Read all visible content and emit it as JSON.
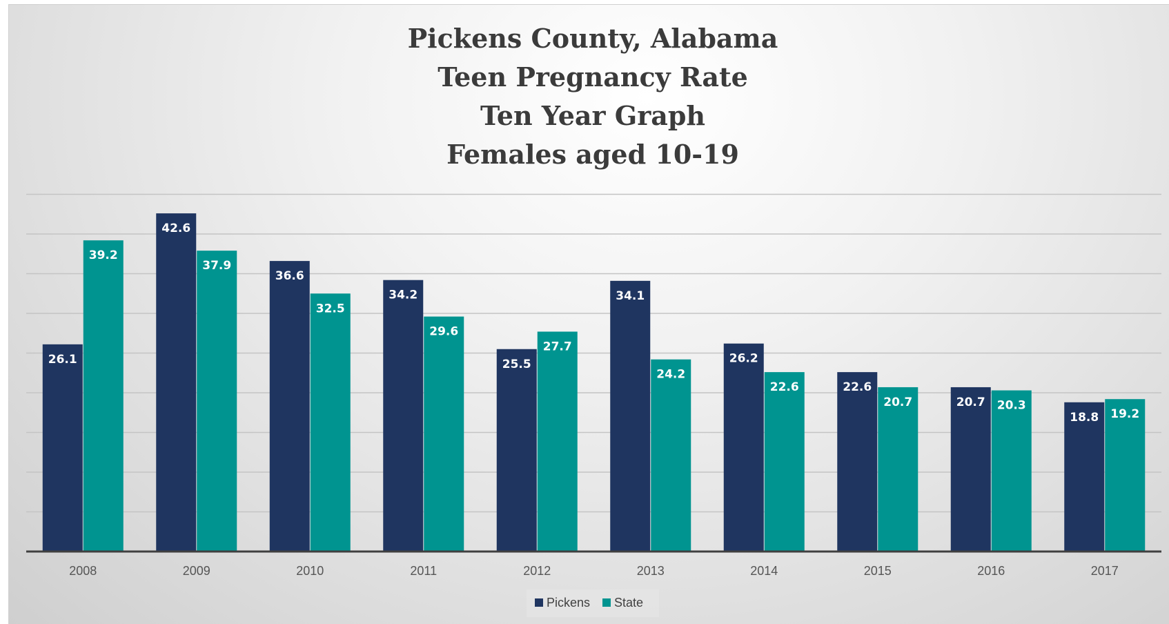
{
  "chart_data": {
    "type": "bar",
    "title_lines": [
      "Pickens County, Alabama",
      "Teen Pregnancy Rate",
      "Ten Year Graph",
      "Females aged 10-19"
    ],
    "categories": [
      "2008",
      "2009",
      "2010",
      "2011",
      "2012",
      "2013",
      "2014",
      "2015",
      "2016",
      "2017"
    ],
    "series": [
      {
        "name": "Pickens",
        "color": "#1f3560",
        "values": [
          26.1,
          42.6,
          36.6,
          34.2,
          25.5,
          34.1,
          26.2,
          22.6,
          20.7,
          18.8
        ]
      },
      {
        "name": "State",
        "color": "#009490",
        "values": [
          39.2,
          37.9,
          32.5,
          29.6,
          27.7,
          24.2,
          22.6,
          20.7,
          20.3,
          19.2
        ]
      }
    ],
    "xlabel": "",
    "ylabel": "",
    "ylim": [
      0,
      45
    ],
    "y_tick_step": 5,
    "y_tick_labels_visible": false,
    "grid": true,
    "data_labels": true,
    "legend_position": "bottom"
  }
}
